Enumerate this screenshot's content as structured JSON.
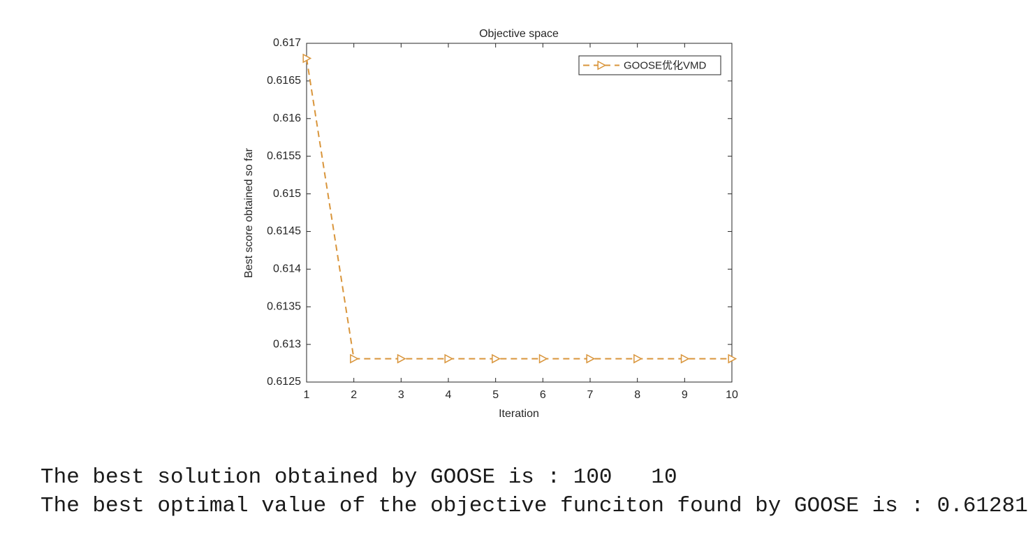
{
  "chart_data": {
    "type": "line",
    "title": "Objective space",
    "x_label": "Iteration",
    "y_label": "Best score obtained so far",
    "x": [
      1,
      2,
      3,
      4,
      5,
      6,
      7,
      8,
      9,
      10
    ],
    "series": [
      {
        "name": "GOOSE优化VMD",
        "color": "#d9953b",
        "values": [
          0.6168,
          0.61281,
          0.61281,
          0.61281,
          0.61281,
          0.61281,
          0.61281,
          0.61281,
          0.61281,
          0.61281
        ]
      }
    ],
    "xlim": [
      1,
      10
    ],
    "xticks": [
      1,
      2,
      3,
      4,
      5,
      6,
      7,
      8,
      9,
      10
    ],
    "ylim": [
      0.6125,
      0.617
    ],
    "yticks": [
      0.6125,
      0.613,
      0.6135,
      0.614,
      0.6145,
      0.615,
      0.6155,
      0.616,
      0.6165,
      0.617
    ],
    "legend": "northeast"
  },
  "console": {
    "lines": [
      "The best solution obtained by GOOSE is : 100   10",
      "The best optimal value of the objective funciton found by GOOSE is : 0.61281"
    ]
  }
}
